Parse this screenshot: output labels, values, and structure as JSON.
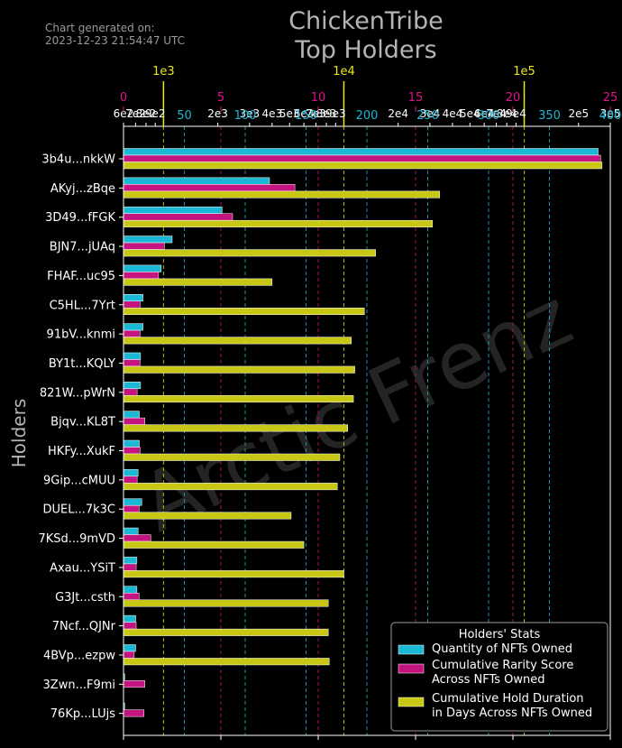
{
  "chart_data": {
    "type": "bar",
    "orientation": "horizontal",
    "title": "ChickenTribe\nTop Holders",
    "generated_note": "Chart generated on:\n2023-12-23 21:54:47 UTC",
    "watermark": "Arctic Frenz",
    "ylabel": "Holders",
    "categories": [
      "3b4u...nkkW",
      "AKyj...zBqe",
      "3D49...fFGK",
      "BJN7...jUAq",
      "FHAF...uc95",
      "C5HL...7Yrt",
      "91bV...knmi",
      "BY1t...KQLY",
      "821W...pWrN",
      "Bjqv...KL8T",
      "HKFy...XukF",
      "9Gip...cMUU",
      "DUEL...7k3C",
      "7KSd...9mVD",
      "Axau...YSiT",
      "G3Jt...csth",
      "7Ncf...QJNr",
      "4BVp...ezpw",
      "3Zwn...F9mi",
      "76Kp...LUjs"
    ],
    "legend_title": "Holders' Stats",
    "legend_position": "lower-right",
    "series": [
      {
        "name": "Quantity of NFTs Owned",
        "color": "#1ab8d4",
        "axis": "linear 0-400",
        "values": [
          390,
          120,
          81,
          40,
          31,
          16,
          16,
          14,
          14,
          13,
          13,
          12,
          15,
          12,
          11,
          11,
          10,
          10,
          1,
          1
        ]
      },
      {
        "name": "Cumulative Rarity Score\nAcross NFTs Owned",
        "color": "#c4147f",
        "axis": "linear 0-25",
        "values": [
          24.5,
          8.8,
          5.6,
          2.1,
          1.8,
          0.85,
          0.85,
          0.85,
          0.7,
          1.1,
          0.85,
          0.7,
          0.8,
          1.4,
          0.65,
          0.8,
          0.65,
          0.55,
          1.1,
          1.05
        ]
      },
      {
        "name": "Cumulative Hold Duration\nin Days Across NFTs Owned",
        "color": "#c8c814",
        "axis": "log 600-300000",
        "values": [
          270000,
          34000,
          31000,
          15000,
          4000,
          13000,
          11000,
          11500,
          11300,
          10500,
          9500,
          9200,
          5100,
          6000,
          10000,
          8200,
          8200,
          8300,
          600,
          600
        ]
      }
    ],
    "axes": {
      "quantity": {
        "min": 0,
        "max": 400,
        "ticks": [
          "50",
          "100",
          "150",
          "200",
          "250",
          "300",
          "350",
          "400"
        ],
        "tick_values": [
          50,
          100,
          150,
          200,
          250,
          300,
          350,
          400
        ],
        "color": "#1ab8d4"
      },
      "rarity": {
        "min": 0,
        "max": 25,
        "ticks": [
          "0",
          "5",
          "10",
          "15",
          "20",
          "25"
        ],
        "tick_values": [
          0,
          5,
          10,
          15,
          20,
          25
        ],
        "color": "#e0148c"
      },
      "duration_major": {
        "ticks": [
          "1e3",
          "1e4",
          "1e5"
        ],
        "tick_values": [
          1000,
          10000,
          100000
        ],
        "color": "#e8e81a"
      },
      "duration_minor": {
        "ticks": [
          "6e2",
          "7e2",
          "8e2",
          "9e2",
          "2e3",
          "3e3",
          "4e3",
          "5e3",
          "6e3",
          "7e3",
          "8e3",
          "9e3",
          "2e4",
          "3e4",
          "4e4",
          "5e4",
          "6e4",
          "7e4",
          "8e4",
          "9e4",
          "2e5",
          "3e5"
        ],
        "tick_values": [
          600,
          700,
          800,
          900,
          2000,
          3000,
          4000,
          5000,
          6000,
          7000,
          8000,
          9000,
          20000,
          30000,
          40000,
          50000,
          60000,
          70000,
          80000,
          90000,
          200000,
          300000
        ]
      }
    }
  }
}
